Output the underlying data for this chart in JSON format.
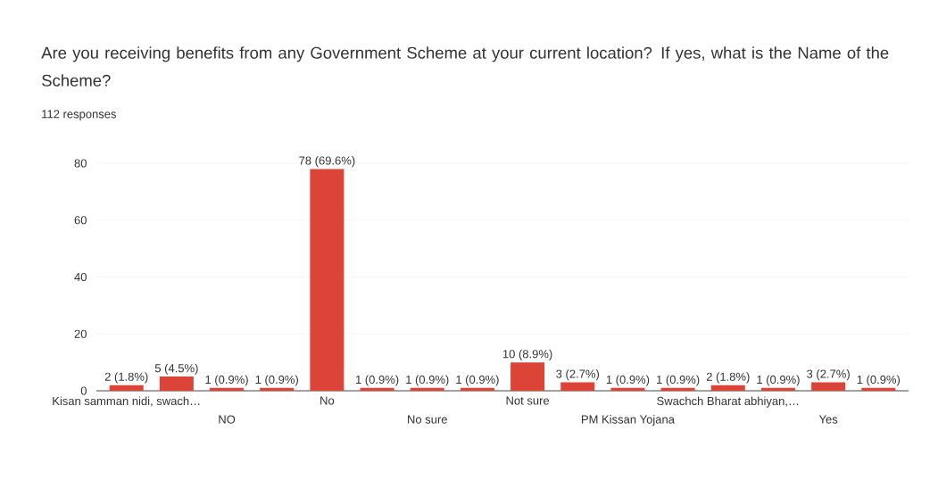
{
  "chart_data": {
    "type": "bar",
    "title": "Are you receiving benefits from any Government Scheme at your current location? If yes, what is the Name of the Scheme?",
    "subtitle": "112 responses",
    "categories": [
      "Kisan samman nidi, swach…",
      null,
      "NO",
      null,
      "No",
      null,
      "No sure",
      null,
      "Not sure",
      null,
      "PM Kissan Yojana",
      null,
      "Swachch Bharat abhiyan,…",
      null,
      "Yes",
      null
    ],
    "values": [
      2,
      5,
      1,
      1,
      78,
      1,
      1,
      1,
      10,
      3,
      1,
      1,
      2,
      1,
      3,
      1
    ],
    "value_labels": [
      "2 (1.8%)",
      "5 (4.5%)",
      "1 (0.9%)",
      "1 (0.9%)",
      "78 (69.6%)",
      "1 (0.9%)",
      "1 (0.9%)",
      "1 (0.9%)",
      "10 (8.9%)",
      "3 (2.7%)",
      "1 (0.9%)",
      "1 (0.9%)",
      "2 (1.8%)",
      "1 (0.9%)",
      "3 (2.7%)",
      "1 (0.9%)"
    ],
    "color": "#db4437",
    "ylim": [
      0,
      80
    ],
    "yticks": [
      0,
      20,
      40,
      60,
      80
    ],
    "grid": true
  }
}
